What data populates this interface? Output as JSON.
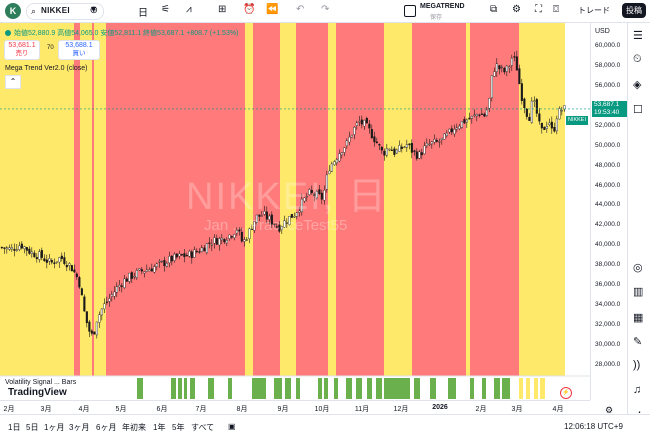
{
  "topbar": {
    "avatar_letter": "K",
    "symbol": "NIKKEI",
    "timeframe": "日",
    "indicator_name": "MEGATREND",
    "indicator_sub": "保存",
    "trade_label": "トレード",
    "post_label": "投稿"
  },
  "ohlc": {
    "text": "始値52,880.9 高値54,065.0 安値52,811.1 終値53,687.1 +808.7 (+1.53%)"
  },
  "sell": {
    "price": "53,681.1",
    "label": "売り"
  },
  "buy": {
    "price": "53,688.1",
    "label": "買い"
  },
  "spread": "70",
  "legend": "Mega Trend Ver2.0 (close)",
  "watermark": {
    "line1": "NIKKEI, 日",
    "line2": "Jan ... PracticeTest55"
  },
  "sub_pane_label": "Volatility Signal ... Bars",
  "tv_logo": "TradingView",
  "yaxis": {
    "currency": "USD",
    "labels": [
      "60,000.0",
      "58,000.0",
      "56,000.0",
      "54,000.0",
      "52,000.0",
      "50,000.0",
      "48,000.0",
      "46,000.0",
      "44,000.0",
      "42,000.0",
      "40,000.0",
      "38,000.0",
      "36,000.0",
      "34,000.0",
      "32,000.0",
      "30,000.0",
      "28,000.0"
    ],
    "price_tag": {
      "name": "NIKKEI",
      "price": "53,687.1",
      "countdown": "19:53:40"
    }
  },
  "xaxis": {
    "labels": [
      {
        "t": "2月",
        "bold": false
      },
      {
        "t": "3月",
        "bold": false
      },
      {
        "t": "4月",
        "bold": false
      },
      {
        "t": "5月",
        "bold": false
      },
      {
        "t": "6月",
        "bold": false
      },
      {
        "t": "7月",
        "bold": false
      },
      {
        "t": "8月",
        "bold": false
      },
      {
        "t": "9月",
        "bold": false
      },
      {
        "t": "10月",
        "bold": false
      },
      {
        "t": "11月",
        "bold": false
      },
      {
        "t": "12月",
        "bold": false
      },
      {
        "t": "2026",
        "bold": true
      },
      {
        "t": "2月",
        "bold": false
      },
      {
        "t": "3月",
        "bold": false
      },
      {
        "t": "4月",
        "bold": false
      }
    ]
  },
  "periods": [
    "1日",
    "5日",
    "1ヶ月",
    "3ヶ月",
    "6ヶ月",
    "年初来",
    "1年",
    "5年",
    "すべて"
  ],
  "clock": "12:06:18 UTC+9",
  "colors": {
    "bull": "#089981",
    "bear": "#f23645",
    "red_zone": "#ff7b7b",
    "yellow_zone": "#ffe96b",
    "signal": "#6ab04c"
  },
  "chart_data": {
    "type": "candlestick",
    "ylim": [
      27000,
      61500
    ],
    "close_points": [
      [
        0,
        39800
      ],
      [
        10,
        39600
      ],
      [
        20,
        40100
      ],
      [
        30,
        39300
      ],
      [
        40,
        38900
      ],
      [
        50,
        38200
      ],
      [
        60,
        38800
      ],
      [
        70,
        37900
      ],
      [
        78,
        36500
      ],
      [
        84,
        33000
      ],
      [
        88,
        31500
      ],
      [
        92,
        30800
      ],
      [
        96,
        32600
      ],
      [
        102,
        33800
      ],
      [
        108,
        34600
      ],
      [
        115,
        35600
      ],
      [
        122,
        36400
      ],
      [
        130,
        36900
      ],
      [
        140,
        37400
      ],
      [
        150,
        37700
      ],
      [
        160,
        38100
      ],
      [
        170,
        38600
      ],
      [
        180,
        38900
      ],
      [
        190,
        39100
      ],
      [
        200,
        39600
      ],
      [
        210,
        40400
      ],
      [
        220,
        40600
      ],
      [
        230,
        41100
      ],
      [
        236,
        41700
      ],
      [
        242,
        40200
      ],
      [
        248,
        41300
      ],
      [
        255,
        42800
      ],
      [
        262,
        43100
      ],
      [
        270,
        42500
      ],
      [
        278,
        41800
      ],
      [
        286,
        42600
      ],
      [
        294,
        43200
      ],
      [
        300,
        44100
      ],
      [
        308,
        45200
      ],
      [
        316,
        45000
      ],
      [
        322,
        44700
      ],
      [
        328,
        47800
      ],
      [
        334,
        48600
      ],
      [
        340,
        49600
      ],
      [
        346,
        50200
      ],
      [
        352,
        51500
      ],
      [
        358,
        52400
      ],
      [
        364,
        52100
      ],
      [
        370,
        51300
      ],
      [
        376,
        50300
      ],
      [
        382,
        49200
      ],
      [
        388,
        49900
      ],
      [
        394,
        49300
      ],
      [
        400,
        49700
      ],
      [
        406,
        50100
      ],
      [
        412,
        49400
      ],
      [
        418,
        49000
      ],
      [
        424,
        49800
      ],
      [
        430,
        50200
      ],
      [
        436,
        50300
      ],
      [
        442,
        50600
      ],
      [
        448,
        51200
      ],
      [
        454,
        51900
      ],
      [
        460,
        52300
      ],
      [
        466,
        52600
      ],
      [
        472,
        52800
      ],
      [
        478,
        53300
      ],
      [
        484,
        53000
      ],
      [
        488,
        54200
      ],
      [
        492,
        57600
      ],
      [
        496,
        58000
      ],
      [
        500,
        57600
      ],
      [
        504,
        57400
      ],
      [
        508,
        57900
      ],
      [
        512,
        59100
      ],
      [
        516,
        57800
      ],
      [
        520,
        55300
      ],
      [
        524,
        53900
      ],
      [
        528,
        52700
      ],
      [
        532,
        54600
      ],
      [
        536,
        53200
      ],
      [
        540,
        51300
      ],
      [
        544,
        51900
      ],
      [
        548,
        52600
      ],
      [
        552,
        51100
      ],
      [
        556,
        53000
      ],
      [
        560,
        53600
      ],
      [
        564,
        53687
      ]
    ],
    "zones": [
      {
        "color": "yellow",
        "from": 0,
        "to": 74
      },
      {
        "color": "red",
        "from": 74,
        "to": 80
      },
      {
        "color": "yellow",
        "from": 80,
        "to": 92
      },
      {
        "color": "red",
        "from": 92,
        "to": 94
      },
      {
        "color": "yellow",
        "from": 94,
        "to": 106
      },
      {
        "color": "red",
        "from": 106,
        "to": 245
      },
      {
        "color": "yellow",
        "from": 245,
        "to": 253
      },
      {
        "color": "red",
        "from": 253,
        "to": 280
      },
      {
        "color": "yellow",
        "from": 280,
        "to": 296
      },
      {
        "color": "red",
        "from": 296,
        "to": 328
      },
      {
        "color": "yellow",
        "from": 328,
        "to": 336
      },
      {
        "color": "red",
        "from": 336,
        "to": 384
      },
      {
        "color": "yellow",
        "from": 384,
        "to": 412
      },
      {
        "color": "red",
        "from": 412,
        "to": 466
      },
      {
        "color": "yellow",
        "from": 466,
        "to": 470
      },
      {
        "color": "red",
        "from": 470,
        "to": 519
      },
      {
        "color": "yellow",
        "from": 519,
        "to": 565
      }
    ],
    "signal_bars": [
      [
        137,
        143
      ],
      [
        171,
        176
      ],
      [
        178,
        182
      ],
      [
        184,
        187
      ],
      [
        190,
        195
      ],
      [
        208,
        214
      ],
      [
        228,
        232
      ],
      [
        252,
        266
      ],
      [
        274,
        282
      ],
      [
        285,
        291
      ],
      [
        296,
        300
      ],
      [
        318,
        322
      ],
      [
        324,
        328
      ],
      [
        334,
        338
      ],
      [
        346,
        352
      ],
      [
        356,
        362
      ],
      [
        367,
        372
      ],
      [
        376,
        382
      ],
      [
        384,
        410
      ],
      [
        414,
        420
      ],
      [
        430,
        436
      ],
      [
        448,
        456
      ],
      [
        470,
        474
      ],
      [
        482,
        486
      ],
      [
        494,
        500
      ],
      [
        502,
        510
      ]
    ],
    "yellow_signal_bars": [
      [
        519,
        523
      ],
      [
        526,
        530
      ],
      [
        534,
        538
      ],
      [
        540,
        545
      ]
    ]
  }
}
